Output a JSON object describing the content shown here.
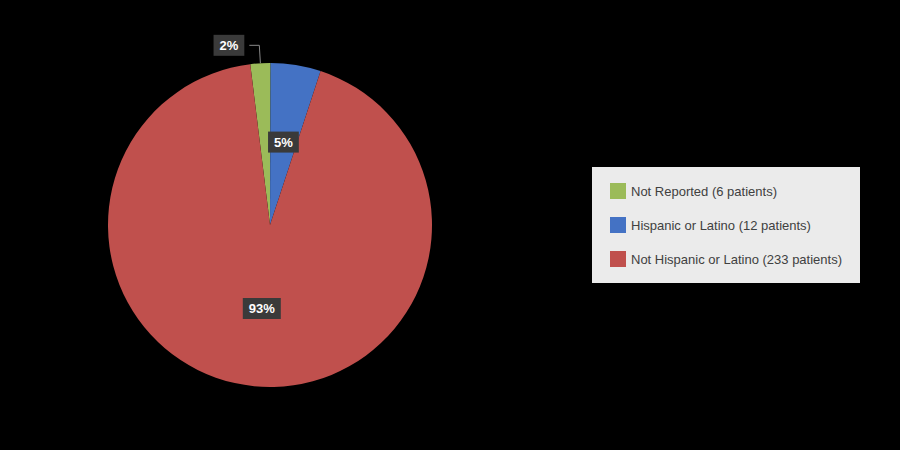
{
  "chart_data": {
    "type": "pie",
    "categories": [
      "Not Reported (6 patients)",
      "Hispanic or Latino (12 patients)",
      "Not Hispanic or Latino (233 patients)"
    ],
    "values": [
      2,
      5,
      93
    ],
    "value_labels": [
      "2%",
      "5%",
      "93%"
    ],
    "colors": [
      "#9BBB59",
      "#4472C4",
      "#C0504D"
    ],
    "legend": "right"
  }
}
